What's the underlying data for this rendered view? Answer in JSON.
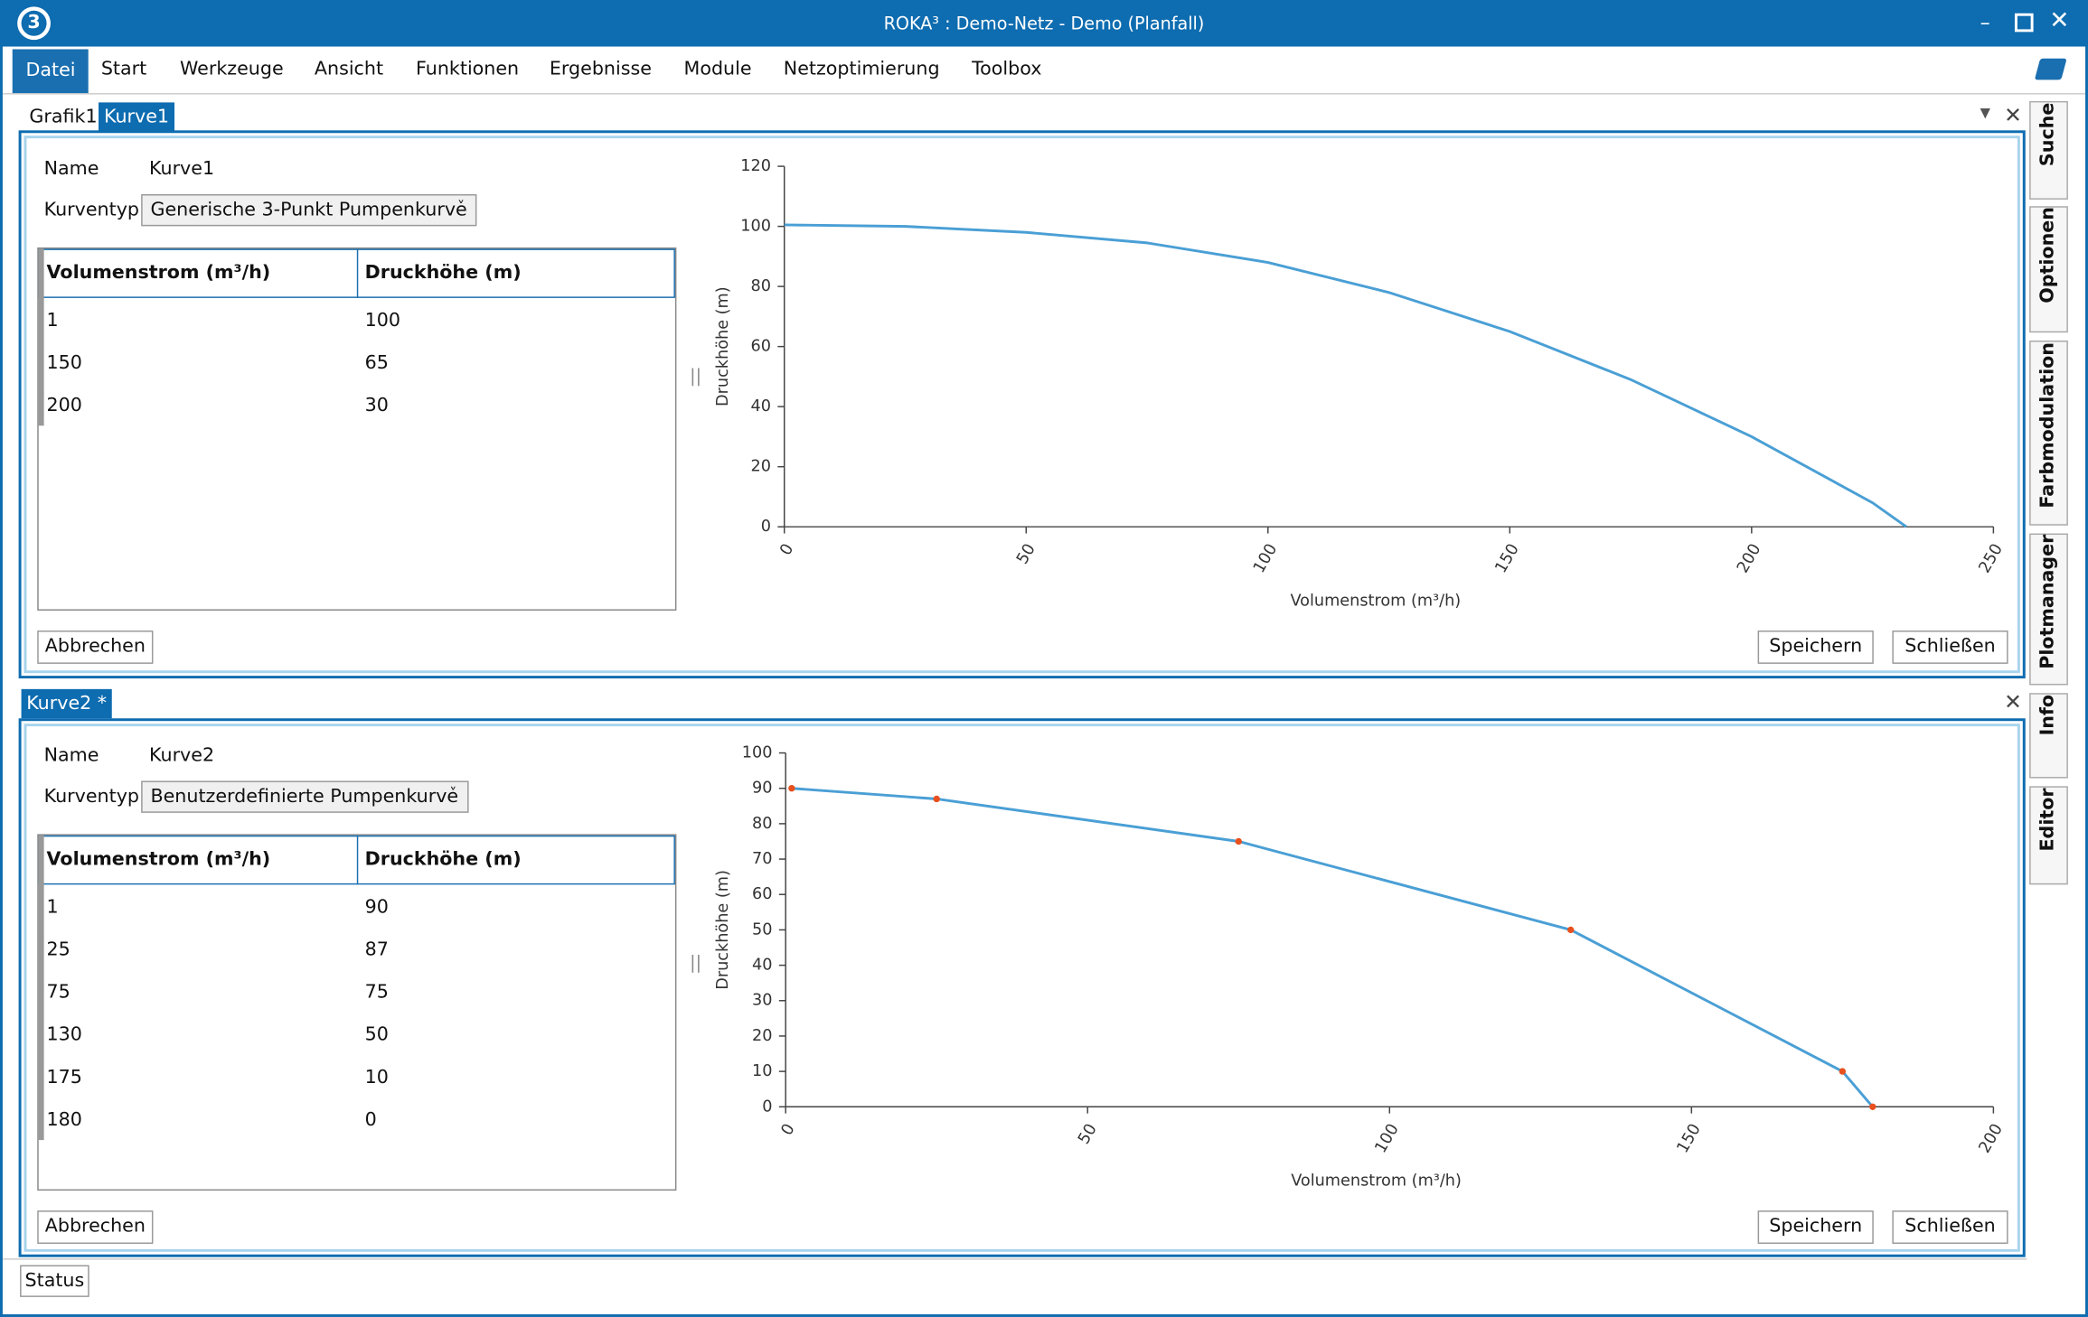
{
  "window": {
    "title": "ROKA³ : Demo-Netz - Demo (Planfall)"
  },
  "menu": [
    "Datei",
    "Start",
    "Werkzeuge",
    "Ansicht",
    "Funktionen",
    "Ergebnisse",
    "Module",
    "Netzoptimierung",
    "Toolbox"
  ],
  "side_tabs": [
    "Suche",
    "Optionen",
    "Farbmodulation",
    "Plotmanager",
    "Info",
    "Editor"
  ],
  "panels": [
    {
      "tabs": [
        "Grafik1",
        "Kurve1"
      ],
      "name_label": "Name",
      "name": "Kurve1",
      "type_label": "Kurventyp",
      "type": "Generische 3-Punkt Pumpenkurve",
      "table": {
        "columns": [
          "Volumenstrom (m³/h)",
          "Druckhöhe (m)"
        ],
        "rows": [
          [
            1,
            100
          ],
          [
            150,
            65
          ],
          [
            200,
            30
          ]
        ]
      },
      "buttons": [
        "Abbrechen",
        "Speichern",
        "Schließen"
      ]
    },
    {
      "tabs": [
        "Kurve2 *"
      ],
      "name_label": "Name",
      "name": "Kurve2",
      "type_label": "Kurventyp",
      "type": "Benutzerdefinierte Pumpenkurve",
      "table": {
        "columns": [
          "Volumenstrom (m³/h)",
          "Druckhöhe (m)"
        ],
        "rows": [
          [
            1,
            90
          ],
          [
            25,
            87
          ],
          [
            75,
            75
          ],
          [
            130,
            50
          ],
          [
            175,
            10
          ],
          [
            180,
            0
          ]
        ]
      },
      "buttons": [
        "Abbrechen",
        "Speichern",
        "Schließen"
      ]
    }
  ],
  "status": "Status",
  "chart_data": [
    {
      "type": "line",
      "x_label": "Volumenstrom (m³/h)",
      "y_label": "Druckhöhe (m)",
      "x": [
        0,
        25,
        50,
        75,
        100,
        125,
        150,
        175,
        200,
        225,
        232
      ],
      "values": [
        100.5,
        100,
        98,
        94.5,
        88,
        78,
        65,
        49,
        30,
        8,
        0
      ],
      "color": "#4a9fd5",
      "markers": false,
      "xlim": [
        0,
        250
      ],
      "xticks": [
        0,
        50,
        100,
        150,
        200,
        250
      ],
      "ylim": [
        0,
        120
      ],
      "yticks": [
        0,
        20,
        40,
        60,
        80,
        100,
        120
      ]
    },
    {
      "type": "line",
      "x_label": "Volumenstrom (m³/h)",
      "y_label": "Druckhöhe (m)",
      "x": [
        1,
        25,
        75,
        130,
        175,
        180
      ],
      "values": [
        90,
        87,
        75,
        50,
        10,
        0
      ],
      "color": "#4a9fd5",
      "markers": true,
      "marker_color": "#e8501e",
      "xlim": [
        0,
        200
      ],
      "xticks": [
        0,
        50,
        100,
        150,
        200
      ],
      "ylim": [
        0,
        100
      ],
      "yticks": [
        0,
        10,
        20,
        30,
        40,
        50,
        60,
        70,
        80,
        90,
        100
      ]
    }
  ]
}
